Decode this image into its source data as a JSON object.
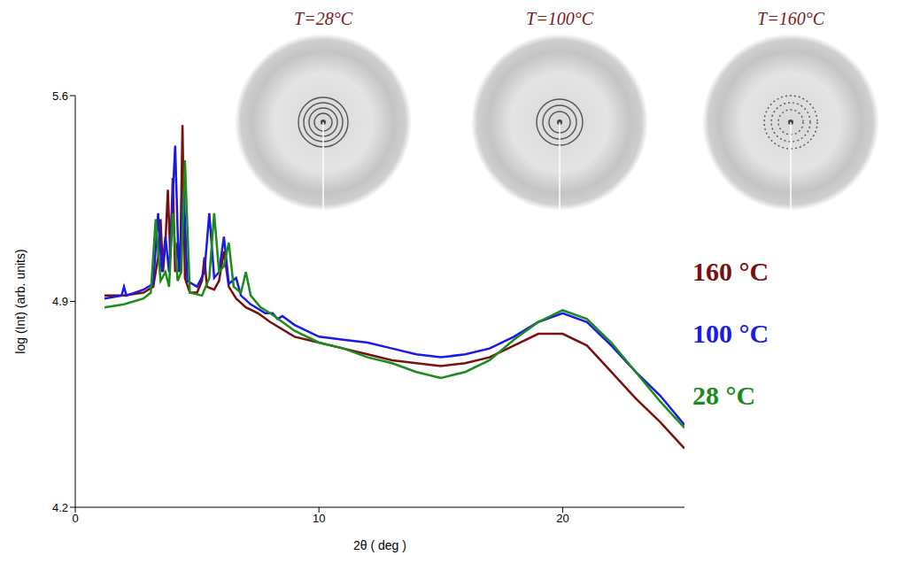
{
  "chart_data": {
    "type": "line",
    "x_label": "2θ ( deg )",
    "y_label": "log (Int) (arb. units)",
    "xlim": [
      0,
      25
    ],
    "xticks": [
      0,
      10,
      20
    ],
    "ylim": [
      4.2,
      5.6
    ],
    "yticks": [
      4.2,
      4.9,
      5.6
    ],
    "grid": false,
    "legend": "right",
    "annotations": [
      "T=28°C",
      "T=100°C",
      "T=160°C"
    ],
    "series": [
      {
        "name": "160 °C",
        "color": "#7a0f0f",
        "x": [
          1.2,
          2,
          2.8,
          3.2,
          3.4,
          3.5,
          3.6,
          3.7,
          3.8,
          3.9,
          4.0,
          4.1,
          4.2,
          4.3,
          4.4,
          4.5,
          4.7,
          5.0,
          5.2,
          5.3,
          5.4,
          5.7,
          5.9,
          6.1,
          6.3,
          6.6,
          7,
          7.5,
          8,
          9,
          10,
          11,
          12,
          13,
          14,
          15,
          16,
          17,
          18,
          19,
          20,
          21,
          22,
          23,
          24,
          25
        ],
        "values": [
          4.92,
          4.92,
          4.93,
          4.95,
          5.05,
          5.18,
          5.0,
          5.1,
          5.28,
          5.05,
          5.32,
          5.0,
          5.1,
          5.0,
          5.5,
          4.98,
          4.93,
          4.93,
          4.97,
          5.05,
          4.95,
          4.94,
          4.97,
          5.07,
          4.95,
          4.91,
          4.88,
          4.86,
          4.83,
          4.78,
          4.76,
          4.74,
          4.72,
          4.7,
          4.69,
          4.68,
          4.69,
          4.71,
          4.75,
          4.79,
          4.79,
          4.75,
          4.66,
          4.57,
          4.49,
          4.4
        ]
      },
      {
        "name": "100 °C",
        "color": "#1a1ae6",
        "x": [
          1.2,
          1.9,
          2.0,
          2.1,
          2.8,
          3.2,
          3.4,
          3.55,
          3.7,
          3.85,
          4.1,
          4.25,
          4.45,
          4.6,
          5.0,
          5.3,
          5.5,
          5.7,
          5.9,
          6.1,
          6.3,
          6.6,
          6.8,
          7.2,
          7.8,
          8.1,
          8.3,
          8.5,
          9,
          10,
          11,
          12,
          13,
          14,
          15,
          16,
          17,
          18,
          19,
          20,
          21,
          22,
          23,
          24,
          25
        ],
        "values": [
          4.91,
          4.92,
          4.95,
          4.92,
          4.94,
          4.96,
          5.2,
          5.0,
          5.12,
          5.0,
          5.43,
          5.0,
          5.28,
          4.97,
          4.95,
          5.0,
          5.2,
          4.98,
          5.0,
          5.12,
          4.96,
          4.98,
          4.92,
          4.89,
          4.86,
          4.86,
          4.84,
          4.85,
          4.82,
          4.78,
          4.77,
          4.76,
          4.74,
          4.72,
          4.71,
          4.72,
          4.74,
          4.78,
          4.83,
          4.86,
          4.83,
          4.75,
          4.66,
          4.58,
          4.48
        ]
      },
      {
        "name": "28 °C",
        "color": "#1a8c1a",
        "x": [
          1.2,
          2,
          2.8,
          3.1,
          3.3,
          3.5,
          3.7,
          3.85,
          4.0,
          4.2,
          4.35,
          4.5,
          4.7,
          5.2,
          5.5,
          5.7,
          5.9,
          6.1,
          6.3,
          6.5,
          6.8,
          7.0,
          7.2,
          7.6,
          8,
          9,
          10,
          11,
          12,
          13,
          14,
          15,
          16,
          17,
          18,
          19,
          20,
          21,
          22,
          23,
          24,
          25
        ],
        "values": [
          4.88,
          4.89,
          4.91,
          4.93,
          5.18,
          4.97,
          5.0,
          4.95,
          5.2,
          4.97,
          5.0,
          5.38,
          4.93,
          4.92,
          4.98,
          5.2,
          5.0,
          5.02,
          5.1,
          4.95,
          4.93,
          5.0,
          4.92,
          4.88,
          4.86,
          4.8,
          4.76,
          4.74,
          4.71,
          4.69,
          4.66,
          4.64,
          4.66,
          4.7,
          4.77,
          4.83,
          4.87,
          4.84,
          4.76,
          4.66,
          4.56,
          4.47
        ]
      }
    ]
  }
}
